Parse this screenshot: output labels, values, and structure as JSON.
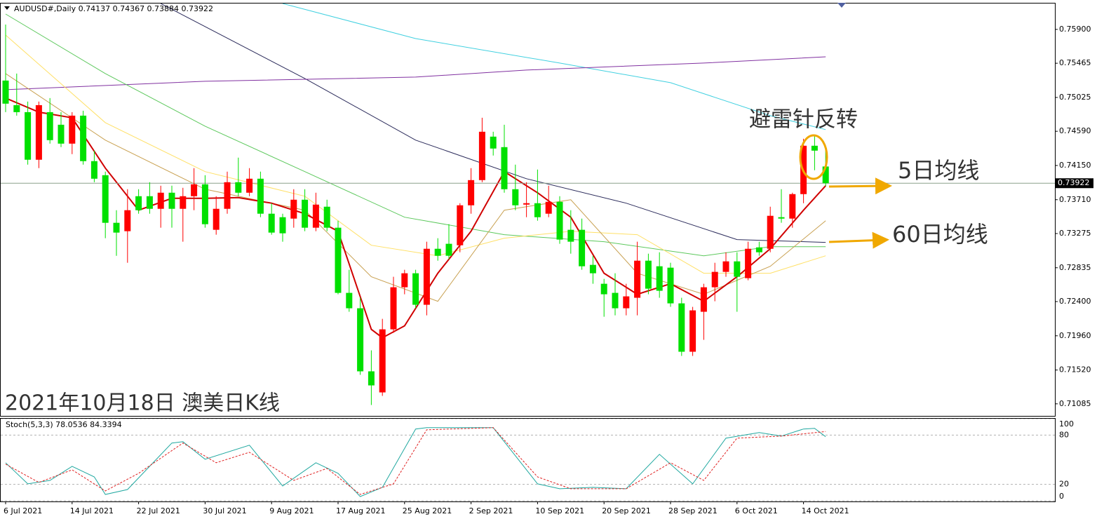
{
  "chart_data": [
    {
      "type": "candlestick",
      "title": "AUDUSD#,Daily  0.74137 0.74367 0.73884 0.73922",
      "categories": [
        "6 Jul 2021",
        null,
        null,
        null,
        null,
        null,
        "14 Jul 2021",
        null,
        null,
        null,
        null,
        null,
        "22 Jul 2021",
        null,
        null,
        null,
        null,
        null,
        "30 Jul 2021",
        null,
        null,
        null,
        null,
        null,
        "9 Aug 2021",
        null,
        null,
        null,
        null,
        null,
        "17 Aug 2021",
        null,
        null,
        null,
        null,
        null,
        "25 Aug 2021",
        null,
        null,
        null,
        null,
        null,
        "2 Sep 2021",
        null,
        null,
        null,
        null,
        null,
        "10 Sep 2021",
        null,
        null,
        null,
        null,
        null,
        "20 Sep 2021",
        null,
        null,
        null,
        null,
        null,
        "28 Sep 2021",
        null,
        null,
        null,
        null,
        null,
        "6 Oct 2021",
        null,
        null,
        null,
        null,
        null,
        "14 Oct 2021",
        null,
        null
      ],
      "open": [
        0.75242,
        0.74926,
        0.74836,
        0.74224,
        0.74836,
        0.74674,
        0.74431,
        0.74791,
        0.74206,
        0.74025,
        0.73413,
        0.73305,
        0.73755,
        0.73755,
        0.73593,
        0.738,
        0.73593,
        0.73755,
        0.73908,
        0.73323,
        0.73593,
        0.73935,
        0.738,
        0.7398,
        0.7353,
        0.73485,
        0.73467,
        0.7371,
        0.7335,
        0.7362,
        0.7335,
        0.72512,
        0.72314,
        0.71503,
        0.71232,
        0.72043,
        0.72584,
        0.72764,
        0.72359,
        0.73079,
        0.73143,
        0.73124,
        0.73638,
        0.73962,
        0.74521,
        0.74386,
        0.73845,
        0.73647,
        0.73665,
        0.7353,
        0.73683,
        0.73323,
        0.73323,
        0.72872,
        0.72629,
        0.72512,
        0.72314,
        0.72449,
        0.72926,
        0.72854,
        0.72836,
        0.72377,
        0.71755,
        0.72269,
        0.72584,
        0.72782,
        0.72917,
        0.72701,
        0.73097,
        0.73079,
        0.73485,
        0.73467,
        0.73782,
        0.74404,
        0.74137
      ],
      "high": [
        0.75963,
        0.75332,
        0.74972,
        0.74972,
        0.75017,
        0.74836,
        0.74836,
        0.74854,
        0.74341,
        0.74071,
        0.73575,
        0.73845,
        0.73845,
        0.73935,
        0.7389,
        0.7389,
        0.73863,
        0.74116,
        0.74025,
        0.73755,
        0.74071,
        0.74251,
        0.74116,
        0.74071,
        0.73665,
        0.7353,
        0.73845,
        0.73845,
        0.738,
        0.7371,
        0.7344,
        0.72809,
        0.72449,
        0.71773,
        0.72178,
        0.72719,
        0.72809,
        0.72809,
        0.7317,
        0.73215,
        0.73395,
        0.73665,
        0.74116,
        0.74764,
        0.74584,
        0.74674,
        0.74161,
        0.73935,
        0.74098,
        0.7389,
        0.73755,
        0.73575,
        0.73467,
        0.72989,
        0.72692,
        0.72764,
        0.72629,
        0.7317,
        0.73016,
        0.73034,
        0.72899,
        0.72449,
        0.72332,
        0.72629,
        0.72899,
        0.73034,
        0.73034,
        0.7317,
        0.7317,
        0.7362,
        0.73845,
        0.738,
        0.74494,
        0.74539,
        0.74367
      ],
      "low": [
        0.74836,
        0.74791,
        0.74161,
        0.74116,
        0.74431,
        0.74386,
        0.74296,
        0.74161,
        0.73935,
        0.73215,
        0.72989,
        0.72899,
        0.7353,
        0.7353,
        0.7335,
        0.7335,
        0.7317,
        0.73575,
        0.7335,
        0.7326,
        0.7353,
        0.73755,
        0.73755,
        0.73485,
        0.7326,
        0.7317,
        0.7335,
        0.73305,
        0.73305,
        0.73305,
        0.72494,
        0.72269,
        0.71458,
        0.7107,
        0.71187,
        0.71998,
        0.72494,
        0.72314,
        0.72223,
        0.72926,
        0.72944,
        0.73034,
        0.7353,
        0.73935,
        0.74278,
        0.738,
        0.73575,
        0.73485,
        0.7344,
        0.73485,
        0.73143,
        0.73016,
        0.72809,
        0.72629,
        0.72205,
        0.72223,
        0.72223,
        0.72223,
        0.72494,
        0.72449,
        0.72332,
        0.71701,
        0.71701,
        0.71908,
        0.72404,
        0.72719,
        0.72269,
        0.72674,
        0.72989,
        0.73034,
        0.73413,
        0.7335,
        0.73665,
        0.74089,
        0.73884
      ],
      "close": [
        0.74945,
        0.74836,
        0.74224,
        0.74926,
        0.74476,
        0.74431,
        0.74791,
        0.74206,
        0.7398,
        0.73413,
        0.73287,
        0.73575,
        0.73575,
        0.73593,
        0.738,
        0.73593,
        0.73755,
        0.73908,
        0.73395,
        0.73593,
        0.73935,
        0.738,
        0.7398,
        0.7353,
        0.73287,
        0.73278,
        0.7371,
        0.7335,
        0.73647,
        0.7335,
        0.72512,
        0.72314,
        0.71503,
        0.71322,
        0.72043,
        0.72584,
        0.72764,
        0.72359,
        0.73079,
        0.72989,
        0.72989,
        0.73638,
        0.73962,
        0.74584,
        0.74368,
        0.73845,
        0.73638,
        0.73665,
        0.73485,
        0.73683,
        0.73197,
        0.7317,
        0.72854,
        0.72764,
        0.72494,
        0.72314,
        0.72467,
        0.72926,
        0.72566,
        0.72539,
        0.72377,
        0.71755,
        0.72287,
        0.72584,
        0.72782,
        0.72917,
        0.72719,
        0.73079,
        0.73034,
        0.73503,
        0.73467,
        0.73782,
        0.74404,
        0.74341,
        0.73922
      ],
      "up_color": "#ff0000",
      "down_color": "#00e000",
      "ylim": [
        0.7093,
        0.76233
      ],
      "yticks": [
        {
          "value": 0.759,
          "label": "0.75900"
        },
        0.75465,
        0.75025,
        {
          "value": 0.7459,
          "label": "0.74590"
        },
        {
          "value": 0.7415,
          "label": "0.74150"
        },
        {
          "value": 0.7371,
          "label": "0.73710"
        },
        0.73275,
        0.72835,
        {
          "value": 0.724,
          "label": "0.72400"
        },
        {
          "value": 0.7196,
          "label": "0.71960"
        },
        {
          "value": 0.7152,
          "label": "0.71520"
        },
        0.71085
      ],
      "last_price": 0.73922,
      "overlays": [
        {
          "color": "#2a2a5a",
          "width": 1,
          "x": [
            14,
            27,
            37,
            47,
            56,
            66,
            74
          ],
          "values": [
            0.76233,
            0.75269,
            0.74476,
            0.7398,
            0.73665,
            0.73197,
            0.73161
          ]
        },
        {
          "color": "#40d0e0",
          "width": 1,
          "x": [
            25,
            37,
            50,
            60,
            69,
            74
          ],
          "values": [
            0.76233,
            0.75782,
            0.75467,
            0.75215,
            0.74791,
            0.74611
          ]
        },
        {
          "color": "#8030a0",
          "width": 1,
          "x": [
            0,
            18,
            37,
            47,
            63,
            74
          ],
          "values": [
            0.75125,
            0.75233,
            0.75287,
            0.75377,
            0.75467,
            0.75548
          ]
        },
        {
          "color": "#5cc85c",
          "width": 1,
          "x": [
            0,
            9,
            18,
            27,
            36,
            45,
            54,
            63,
            69,
            74
          ],
          "values": [
            0.76098,
            0.75332,
            0.74656,
            0.74071,
            0.73485,
            0.7326,
            0.7317,
            0.72989,
            0.73106,
            0.73106
          ]
        },
        {
          "color": "#ffe066",
          "width": 1,
          "x": [
            0,
            9,
            18,
            27,
            33,
            39,
            45,
            51,
            57,
            63,
            69,
            74
          ],
          "values": [
            0.75827,
            0.74701,
            0.74071,
            0.73755,
            0.73124,
            0.72989,
            0.73215,
            0.73305,
            0.7326,
            0.72764,
            0.72764,
            0.72989
          ]
        },
        {
          "color": "#c8a050",
          "width": 1,
          "x": [
            0,
            9,
            18,
            27,
            33,
            39,
            45,
            51,
            57,
            63,
            69,
            74
          ],
          "values": [
            0.75332,
            0.74476,
            0.73845,
            0.73575,
            0.72719,
            0.72404,
            0.73575,
            0.7371,
            0.72764,
            0.72494,
            0.72854,
            0.7344
          ]
        },
        {
          "color": "#d00000",
          "width": 2,
          "x": [
            0,
            3,
            6,
            9,
            12,
            15,
            18,
            21,
            24,
            27,
            30,
            33,
            34,
            36,
            39,
            42,
            45,
            48,
            51,
            54,
            57,
            60,
            63,
            66,
            69,
            72,
            74
          ],
          "values": [
            0.75017,
            0.74836,
            0.74764,
            0.74116,
            0.73575,
            0.73728,
            0.73728,
            0.73737,
            0.73665,
            0.7353,
            0.73305,
            0.72043,
            0.71935,
            0.72088,
            0.72764,
            0.73305,
            0.74071,
            0.738,
            0.73485,
            0.72764,
            0.72494,
            0.72629,
            0.72404,
            0.72719,
            0.73079,
            0.73575,
            0.7389
          ]
        }
      ],
      "annotations": [
        "避雷针反转",
        "5日均线",
        "60日均线",
        "2021年10月18日 澳美日K线"
      ]
    },
    {
      "type": "line",
      "title": "Stoch(5,3,3) 78.0536 84.3394",
      "ylim": [
        0,
        100
      ],
      "yticks": [
        100,
        80,
        20,
        0
      ],
      "series": [
        {
          "color": "#20a8a0",
          "dashed": false,
          "x": [
            0,
            2,
            4,
            6,
            8,
            9,
            11,
            15,
            16,
            18,
            22,
            25,
            28,
            30,
            32,
            34,
            37,
            38,
            44,
            48,
            50,
            53,
            56,
            59,
            62,
            65,
            68,
            70,
            72,
            73,
            74
          ],
          "values": [
            46.3,
            20.6,
            24.8,
            42,
            29.1,
            7.7,
            13.7,
            70.3,
            72,
            50.6,
            67.7,
            18,
            46.3,
            33.4,
            5.1,
            16.3,
            87.4,
            89.1,
            89.1,
            20.6,
            14.6,
            16.3,
            14.6,
            56.6,
            20.6,
            76.3,
            83.1,
            78.8,
            87.4,
            88.3,
            78.0536
          ]
        },
        {
          "color": "#e02020",
          "dashed": true,
          "x": [
            0,
            3,
            6,
            9,
            12,
            16,
            19,
            22,
            26,
            29,
            32,
            35,
            38,
            44,
            48,
            51,
            56,
            60,
            63,
            66,
            70,
            74
          ],
          "values": [
            44.6,
            22.3,
            37.7,
            12,
            33.4,
            70.3,
            46.3,
            59.1,
            24.8,
            39.4,
            7.7,
            20.6,
            86.5,
            89.1,
            29.1,
            14.6,
            14.6,
            46.3,
            24.8,
            76.3,
            78.8,
            84.3394
          ]
        }
      ]
    }
  ]
}
